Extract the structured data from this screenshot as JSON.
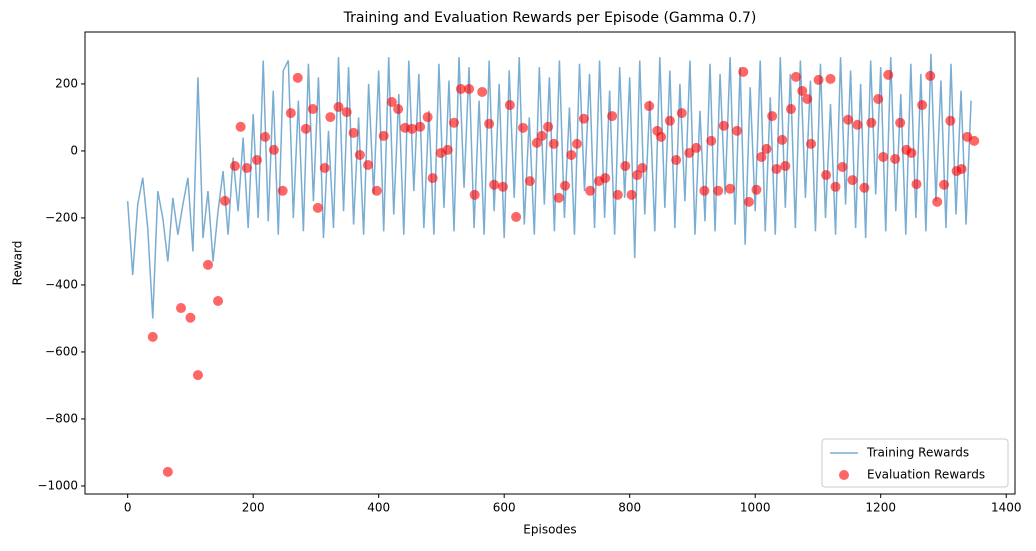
{
  "chart_data": {
    "type": "line",
    "title": "Training and Evaluation Rewards per Episode (Gamma 0.7)",
    "x_label": "Episodes",
    "y_label": "Reward",
    "xlim": [
      -68,
      1414
    ],
    "ylim": [
      -1024,
      355
    ],
    "xticks": [
      0,
      200,
      400,
      600,
      800,
      1000,
      1200,
      1400
    ],
    "yticks": [
      {
        "value": -1000,
        "label": "−1000"
      },
      {
        "value": -800,
        "label": "−800"
      },
      {
        "value": -600,
        "label": "−600"
      },
      {
        "value": -400,
        "label": "−400"
      },
      {
        "value": -200,
        "label": "−200"
      },
      0,
      200
    ],
    "legend": "lower right",
    "series": [
      {
        "name": "Training Rewards",
        "type": "line",
        "color": "#1f77b4",
        "x": [
          0,
          8,
          16,
          24,
          32,
          40,
          48,
          56,
          64,
          72,
          80,
          88,
          96,
          104,
          112,
          120,
          128,
          136,
          144,
          152,
          160,
          168,
          176,
          184,
          192,
          200,
          208,
          216,
          224,
          232,
          240,
          248,
          256,
          264,
          272,
          280,
          288,
          296,
          304,
          312,
          320,
          328,
          336,
          344,
          352,
          360,
          368,
          376,
          384,
          392,
          400,
          408,
          416,
          424,
          432,
          440,
          448,
          456,
          464,
          472,
          480,
          488,
          496,
          504,
          512,
          520,
          528,
          536,
          544,
          552,
          560,
          568,
          576,
          584,
          592,
          600,
          608,
          616,
          624,
          632,
          640,
          648,
          656,
          664,
          672,
          680,
          688,
          696,
          704,
          712,
          720,
          728,
          736,
          744,
          752,
          760,
          768,
          776,
          784,
          792,
          800,
          808,
          816,
          824,
          832,
          840,
          848,
          856,
          864,
          872,
          880,
          888,
          896,
          904,
          912,
          920,
          928,
          936,
          944,
          952,
          960,
          968,
          976,
          984,
          992,
          1000,
          1008,
          1016,
          1024,
          1032,
          1040,
          1048,
          1056,
          1064,
          1072,
          1080,
          1088,
          1096,
          1104,
          1112,
          1120,
          1128,
          1136,
          1144,
          1152,
          1160,
          1168,
          1176,
          1184,
          1192,
          1200,
          1208,
          1216,
          1224,
          1232,
          1240,
          1248,
          1256,
          1264,
          1272,
          1280,
          1288,
          1296,
          1304,
          1312,
          1320,
          1328,
          1336,
          1344
        ],
        "values": [
          -150,
          -370,
          -160,
          -80,
          -230,
          -500,
          -120,
          -200,
          -330,
          -140,
          -250,
          -160,
          -80,
          -300,
          220,
          -260,
          -120,
          -330,
          -180,
          -60,
          -250,
          -20,
          -180,
          40,
          -230,
          110,
          -200,
          270,
          -210,
          180,
          -250,
          240,
          270,
          -200,
          150,
          -240,
          260,
          -150,
          220,
          -260,
          60,
          -230,
          280,
          -180,
          250,
          -220,
          100,
          -250,
          200,
          -130,
          240,
          -240,
          280,
          -190,
          170,
          -250,
          270,
          -120,
          230,
          -230,
          120,
          -250,
          260,
          -170,
          210,
          -240,
          280,
          -110,
          250,
          -230,
          150,
          -250,
          270,
          -180,
          200,
          -260,
          240,
          -140,
          280,
          -220,
          100,
          -250,
          250,
          -160,
          220,
          -240,
          270,
          -200,
          130,
          -250,
          260,
          -120,
          230,
          -230,
          270,
          -200,
          180,
          -250,
          250,
          -140,
          220,
          -320,
          270,
          -190,
          150,
          -240,
          280,
          -170,
          240,
          -230,
          200,
          -150,
          270,
          -250,
          120,
          -210,
          260,
          -240,
          230,
          -130,
          280,
          -220,
          250,
          -280,
          190,
          -180,
          270,
          -240,
          160,
          -250,
          280,
          -170,
          230,
          -230,
          270,
          -140,
          210,
          -240,
          260,
          -200,
          140,
          -250,
          280,
          -160,
          240,
          -230,
          200,
          -260,
          270,
          -130,
          250,
          -240,
          280,
          -180,
          170,
          -250,
          260,
          -200,
          230,
          -240,
          290,
          -150,
          210,
          -230,
          260,
          -190,
          180,
          -220,
          150
        ]
      },
      {
        "name": "Evaluation Rewards",
        "type": "scatter",
        "color": "#ff0000",
        "x": [
          40,
          64,
          85,
          100,
          112,
          128,
          144,
          155,
          171,
          180,
          190,
          206,
          219,
          233,
          247,
          260,
          271,
          284,
          295,
          303,
          314,
          323,
          336,
          349,
          360,
          370,
          383,
          397,
          408,
          421,
          431,
          442,
          453,
          466,
          478,
          486,
          499,
          510,
          520,
          531,
          544,
          553,
          565,
          576,
          584,
          598,
          609,
          619,
          630,
          641,
          652,
          660,
          670,
          679,
          687,
          697,
          707,
          716,
          727,
          737,
          751,
          761,
          772,
          781,
          793,
          803,
          812,
          820,
          831,
          844,
          850,
          864,
          874,
          883,
          895,
          906,
          919,
          930,
          941,
          950,
          960,
          971,
          981,
          990,
          1002,
          1010,
          1018,
          1027,
          1034,
          1043,
          1048,
          1057,
          1065,
          1075,
          1083,
          1089,
          1101,
          1113,
          1120,
          1128,
          1139,
          1148,
          1155,
          1163,
          1174,
          1185,
          1196,
          1204,
          1212,
          1223,
          1231,
          1241,
          1249,
          1257,
          1266,
          1279,
          1290,
          1301,
          1311,
          1321,
          1329,
          1338,
          1349
        ],
        "values": [
          -555,
          -958,
          -469,
          -498,
          -669,
          -340,
          -448,
          -149,
          -45,
          72,
          -51,
          -27,
          42,
          3,
          -119,
          113,
          218,
          66,
          125,
          -170,
          -51,
          101,
          131,
          116,
          54,
          -12,
          -42,
          -119,
          45,
          146,
          125,
          69,
          66,
          72,
          101,
          -81,
          -6,
          3,
          84,
          185,
          185,
          -131,
          176,
          81,
          -101,
          -107,
          137,
          -197,
          69,
          -90,
          24,
          45,
          72,
          21,
          -140,
          -104,
          -12,
          21,
          96,
          -119,
          -90,
          -81,
          104,
          -131,
          -45,
          -131,
          -72,
          -51,
          134,
          60,
          42,
          90,
          -27,
          113,
          -6,
          9,
          -119,
          30,
          -119,
          75,
          -113,
          60,
          236,
          -152,
          -116,
          -18,
          6,
          104,
          -54,
          33,
          -45,
          125,
          221,
          179,
          155,
          21,
          212,
          -72,
          215,
          -107,
          -48,
          93,
          -87,
          78,
          -110,
          84,
          155,
          -18,
          227,
          -24,
          84,
          3,
          -6,
          -99,
          137,
          224,
          -152,
          -101,
          90,
          -60,
          -54,
          42,
          30
        ]
      }
    ]
  }
}
